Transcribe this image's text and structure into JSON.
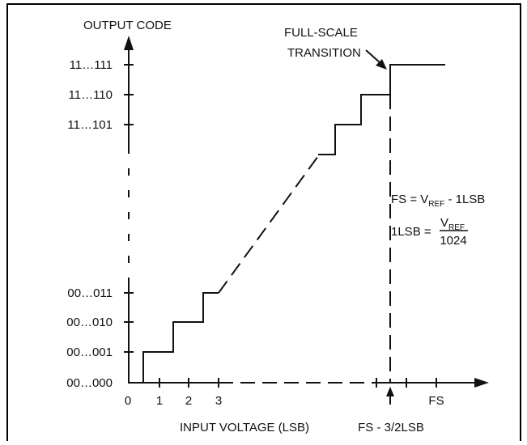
{
  "axis": {
    "y_title": "OUTPUT CODE",
    "x_title": "INPUT VOLTAGE (LSB)"
  },
  "y_ticks": [
    "00…000",
    "00…001",
    "00…010",
    "00…011",
    "11…101",
    "11…110",
    "11…111"
  ],
  "x_ticks": {
    "zero": "0",
    "one": "1",
    "two": "2",
    "three": "3",
    "fs": "FS",
    "fs_minus": "FS - 3/2LSB"
  },
  "annotation": {
    "line1": "FULL-SCALE",
    "line2": "TRANSITION"
  },
  "formula": {
    "fs_lhs": "FS = V",
    "ref_sub": "REF",
    "fs_rhs": " - 1LSB",
    "lsb_lhs": "1LSB = ",
    "frac_num": "V",
    "frac_num_sub": "REF",
    "frac_den": "1024"
  },
  "colors": {
    "line": "#111111",
    "frame": "#000000",
    "background": "#ffffff"
  }
}
